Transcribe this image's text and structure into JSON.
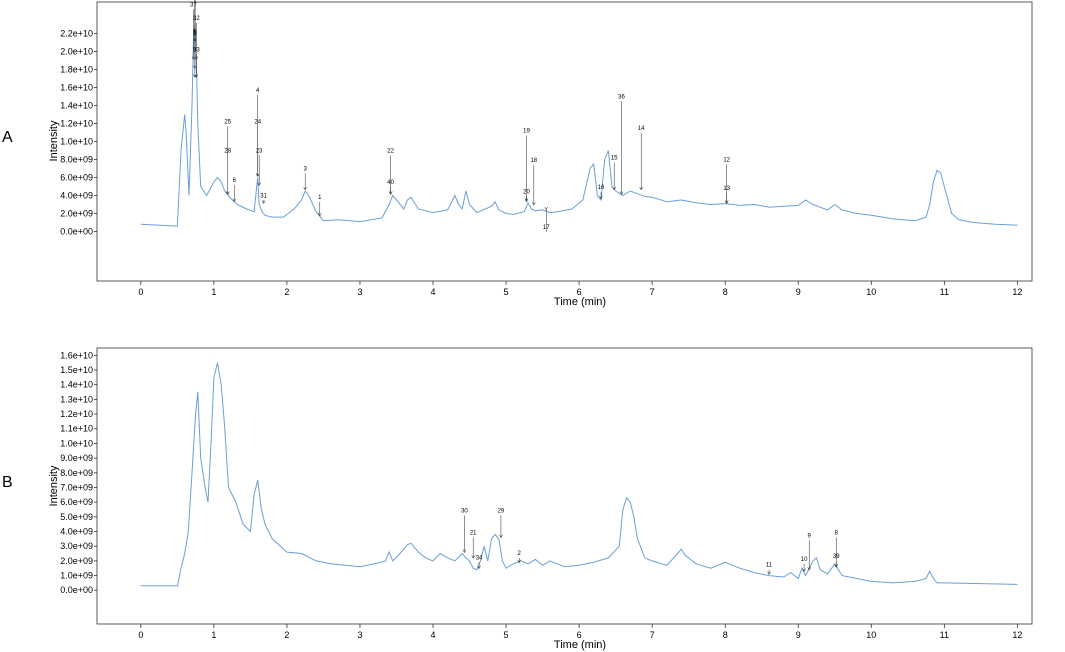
{
  "chart_data": [
    {
      "type": "line",
      "panel_label": "A",
      "xlabel": "Time (min)",
      "ylabel": "Intensity",
      "xlim": [
        -0.6,
        12.2
      ],
      "ylim": [
        -5500000000.0,
        25500000000.0
      ],
      "x_ticks": [
        0,
        1,
        2,
        3,
        4,
        5,
        6,
        7,
        8,
        9,
        10,
        11,
        12
      ],
      "y_ticks": [
        0,
        2000000000.0,
        4000000000.0,
        6000000000.0,
        8000000000.0,
        10000000000.0,
        12000000000.0,
        14000000000.0,
        16000000000.0,
        18000000000.0,
        20000000000.0,
        22000000000.0
      ],
      "y_tick_labels": [
        "0.0e+00",
        "2.0e+09",
        "4.0e+09",
        "6.0e+09",
        "8.0e+09",
        "1.0e+10",
        "1.2e+10",
        "1.4e+10",
        "1.6e+10",
        "1.8e+10",
        "2.0e+10",
        "2.2e+10"
      ],
      "line_color": "#6a9fd8",
      "grid": false,
      "series": [
        {
          "x": [
            0,
            0.5,
            0.55,
            0.6,
            0.62,
            0.66,
            0.7,
            0.72,
            0.74,
            0.76,
            0.78,
            0.82,
            0.9,
            1.0,
            1.05,
            1.1,
            1.15,
            1.25,
            1.32,
            1.45,
            1.55,
            1.6,
            1.62,
            1.66,
            1.7,
            1.8,
            1.95,
            2.1,
            2.2,
            2.25,
            2.3,
            2.4,
            2.5,
            2.7,
            3.0,
            3.3,
            3.4,
            3.45,
            3.5,
            3.6,
            3.65,
            3.7,
            3.8,
            4.0,
            4.2,
            4.3,
            4.35,
            4.4,
            4.45,
            4.5,
            4.6,
            4.8,
            4.85,
            4.9,
            5.0,
            5.1,
            5.25,
            5.3,
            5.35,
            5.4,
            5.5,
            5.6,
            5.7,
            5.9,
            6.05,
            6.15,
            6.2,
            6.25,
            6.3,
            6.35,
            6.4,
            6.45,
            6.5,
            6.6,
            6.7,
            6.8,
            6.9,
            7.0,
            7.2,
            7.4,
            7.6,
            7.8,
            8.0,
            8.2,
            8.4,
            8.6,
            8.8,
            9.0,
            9.1,
            9.2,
            9.3,
            9.4,
            9.5,
            9.6,
            9.8,
            10.0,
            10.3,
            10.6,
            10.75,
            10.8,
            10.85,
            10.9,
            10.95,
            11.0,
            11.05,
            11.1,
            11.2,
            11.4,
            11.7,
            12.0
          ],
          "y": [
            800000000.0,
            600000000.0,
            9000000000.0,
            13000000000.0,
            11000000000.0,
            4000000000.0,
            14000000000.0,
            21000000000.0,
            23000000000.0,
            19000000000.0,
            12000000000.0,
            5000000000.0,
            4000000000.0,
            5500000000.0,
            6000000000.0,
            5500000000.0,
            4500000000.0,
            3500000000.0,
            3000000000.0,
            2500000000.0,
            2200000000.0,
            6000000000.0,
            3000000000.0,
            2200000000.0,
            1800000000.0,
            1600000000.0,
            1600000000.0,
            2500000000.0,
            3500000000.0,
            4500000000.0,
            4000000000.0,
            2200000000.0,
            1200000000.0,
            1300000000.0,
            1100000000.0,
            1500000000.0,
            3000000000.0,
            4000000000.0,
            3500000000.0,
            2500000000.0,
            3500000000.0,
            3800000000.0,
            2500000000.0,
            2100000000.0,
            2400000000.0,
            4000000000.0,
            3000000000.0,
            2500000000.0,
            4500000000.0,
            3000000000.0,
            2100000000.0,
            2800000000.0,
            3300000000.0,
            2400000000.0,
            2000000000.0,
            1900000000.0,
            2200000000.0,
            3200000000.0,
            2500000000.0,
            2300000000.0,
            2400000000.0,
            2100000000.0,
            2200000000.0,
            2500000000.0,
            3500000000.0,
            7000000000.0,
            7500000000.0,
            4000000000.0,
            3500000000.0,
            8000000000.0,
            9000000000.0,
            5000000000.0,
            4500000000.0,
            4000000000.0,
            4500000000.0,
            4200000000.0,
            3900000000.0,
            3800000000.0,
            3300000000.0,
            3500000000.0,
            3200000000.0,
            3000000000.0,
            3100000000.0,
            2900000000.0,
            3000000000.0,
            2700000000.0,
            2800000000.0,
            2900000000.0,
            3500000000.0,
            3000000000.0,
            2700000000.0,
            2400000000.0,
            3000000000.0,
            2400000000.0,
            2000000000.0,
            1800000000.0,
            1400000000.0,
            1200000000.0,
            1600000000.0,
            3000000000.0,
            5500000000.0,
            6800000000.0,
            6500000000.0,
            5000000000.0,
            3500000000.0,
            2000000000.0,
            1300000000.0,
            1000000000.0,
            800000000.0,
            700000000.0
          ]
        }
      ],
      "annotations": [
        {
          "label": "26",
          "x": 0.74,
          "y": 21000000000.0,
          "text_y": 32000000000.0
        },
        {
          "label": "27",
          "x": 0.74,
          "y": 21000000000.0,
          "text_y": 30500000000.0
        },
        {
          "label": "38",
          "x": 0.74,
          "y": 21000000000.0,
          "text_y": 29000000000.0
        },
        {
          "label": "35",
          "x": 0.74,
          "y": 21000000000.0,
          "text_y": 27500000000.0
        },
        {
          "label": "7",
          "x": 0.74,
          "y": 20000000000.0,
          "text_y": 26000000000.0
        },
        {
          "label": "37",
          "x": 0.72,
          "y": 19000000000.0,
          "text_y": 25000000000.0
        },
        {
          "label": "32",
          "x": 0.76,
          "y": 19000000000.0,
          "text_y": 23500000000.0
        },
        {
          "label": "5",
          "x": 0.74,
          "y": 18000000000.0,
          "text_y": 22000000000.0
        },
        {
          "label": "9",
          "x": 0.74,
          "y": 17000000000.0,
          "text_y": 21800000000.0
        },
        {
          "label": "33",
          "x": 0.76,
          "y": 17000000000.0,
          "text_y": 20000000000.0
        },
        {
          "label": "25",
          "x": 1.19,
          "y": 4000000000.0,
          "text_y": 12000000000.0
        },
        {
          "label": "28",
          "x": 1.19,
          "y": 4000000000.0,
          "text_y": 8800000000.0
        },
        {
          "label": "6",
          "x": 1.28,
          "y": 3200000000.0,
          "text_y": 5500000000.0
        },
        {
          "label": "4",
          "x": 1.6,
          "y": 6000000000.0,
          "text_y": 15500000000.0
        },
        {
          "label": "24",
          "x": 1.6,
          "y": 6000000000.0,
          "text_y": 12000000000.0
        },
        {
          "label": "23",
          "x": 1.62,
          "y": 5000000000.0,
          "text_y": 8800000000.0
        },
        {
          "label": "31",
          "x": 1.68,
          "y": 3000000000.0,
          "text_y": 3800000000.0
        },
        {
          "label": "3",
          "x": 2.25,
          "y": 4500000000.0,
          "text_y": 6800000000.0
        },
        {
          "label": "1",
          "x": 2.45,
          "y": 1600000000.0,
          "text_y": 3600000000.0
        },
        {
          "label": "22",
          "x": 3.42,
          "y": 4000000000.0,
          "text_y": 8800000000.0
        },
        {
          "label": "40",
          "x": 3.42,
          "y": 4000000000.0,
          "text_y": 5300000000.0
        },
        {
          "label": "19",
          "x": 5.28,
          "y": 3200000000.0,
          "text_y": 11000000000.0
        },
        {
          "label": "20",
          "x": 5.28,
          "y": 3200000000.0,
          "text_y": 4200000000.0
        },
        {
          "label": "18",
          "x": 5.38,
          "y": 2800000000.0,
          "text_y": 7700000000.0
        },
        {
          "label": "17",
          "x": 5.55,
          "y": 2300000000.0,
          "text_y": 300000000.0
        },
        {
          "label": "16",
          "x": 6.3,
          "y": 3500000000.0,
          "text_y": 4700000000.0
        },
        {
          "label": "15",
          "x": 6.48,
          "y": 4500000000.0,
          "text_y": 8000000000.0
        },
        {
          "label": "36",
          "x": 6.58,
          "y": 4000000000.0,
          "text_y": 14800000000.0
        },
        {
          "label": "14",
          "x": 6.85,
          "y": 4500000000.0,
          "text_y": 11300000000.0
        },
        {
          "label": "12",
          "x": 8.02,
          "y": 3000000000.0,
          "text_y": 7800000000.0
        },
        {
          "label": "13",
          "x": 8.02,
          "y": 3000000000.0,
          "text_y": 4600000000.0
        }
      ]
    },
    {
      "type": "line",
      "panel_label": "B",
      "xlabel": "Time (min)",
      "ylabel": "Intensity",
      "xlim": [
        -0.6,
        12.2
      ],
      "ylim": [
        -2300000000.0,
        16500000000.0
      ],
      "x_ticks": [
        0,
        1,
        2,
        3,
        4,
        5,
        6,
        7,
        8,
        9,
        10,
        11,
        12
      ],
      "y_ticks": [
        0,
        1000000000.0,
        2000000000.0,
        3000000000.0,
        4000000000.0,
        5000000000.0,
        6000000000.0,
        7000000000.0,
        8000000000.0,
        9000000000.0,
        10000000000.0,
        11000000000.0,
        12000000000.0,
        13000000000.0,
        14000000000.0,
        15000000000.0,
        16000000000.0
      ],
      "y_tick_labels": [
        "0.0e+00",
        "1.0e+09",
        "2.0e+09",
        "3.0e+09",
        "4.0e+09",
        "5.0e+09",
        "6.0e+09",
        "7.0e+09",
        "8.0e+09",
        "9.0e+09",
        "1.0e+10",
        "1.1e+10",
        "1.2e+10",
        "1.3e+10",
        "1.4e+10",
        "1.5e+10",
        "1.6e+10"
      ],
      "line_color": "#6a9fd8",
      "grid": false,
      "series": [
        {
          "x": [
            0,
            0.5,
            0.55,
            0.6,
            0.65,
            0.7,
            0.75,
            0.78,
            0.82,
            0.88,
            0.92,
            0.96,
            1.0,
            1.05,
            1.1,
            1.15,
            1.2,
            1.3,
            1.4,
            1.5,
            1.55,
            1.6,
            1.65,
            1.7,
            1.8,
            2.0,
            2.2,
            2.4,
            2.6,
            2.8,
            3.0,
            3.2,
            3.35,
            3.4,
            3.45,
            3.55,
            3.65,
            3.7,
            3.8,
            3.9,
            4.0,
            4.1,
            4.2,
            4.3,
            4.4,
            4.45,
            4.5,
            4.55,
            4.6,
            4.65,
            4.7,
            4.75,
            4.8,
            4.85,
            4.9,
            4.95,
            5.0,
            5.1,
            5.2,
            5.3,
            5.4,
            5.5,
            5.6,
            5.7,
            5.8,
            6.0,
            6.2,
            6.4,
            6.55,
            6.6,
            6.65,
            6.7,
            6.75,
            6.8,
            6.9,
            7.0,
            7.2,
            7.35,
            7.4,
            7.45,
            7.6,
            7.8,
            8.0,
            8.2,
            8.4,
            8.6,
            8.8,
            8.9,
            9.0,
            9.05,
            9.1,
            9.2,
            9.25,
            9.3,
            9.4,
            9.5,
            9.6,
            9.8,
            10.0,
            10.3,
            10.6,
            10.75,
            10.8,
            10.85,
            10.9,
            11.0,
            11.5,
            12.0
          ],
          "y": [
            300000000.0,
            300000000.0,
            1500000000.0,
            2500000000.0,
            4000000000.0,
            8000000000.0,
            12000000000.0,
            13500000000.0,
            9000000000.0,
            7000000000.0,
            6000000000.0,
            10000000000.0,
            14500000000.0,
            15500000000.0,
            14000000000.0,
            11000000000.0,
            7000000000.0,
            6000000000.0,
            4500000000.0,
            4000000000.0,
            6500000000.0,
            7500000000.0,
            5500000000.0,
            4500000000.0,
            3500000000.0,
            2600000000.0,
            2500000000.0,
            2000000000.0,
            1800000000.0,
            1700000000.0,
            1600000000.0,
            1800000000.0,
            2000000000.0,
            2600000000.0,
            2000000000.0,
            2500000000.0,
            3100000000.0,
            3200000000.0,
            2600000000.0,
            2200000000.0,
            2000000000.0,
            2500000000.0,
            2200000000.0,
            2000000000.0,
            2500000000.0,
            2200000000.0,
            2000000000.0,
            1500000000.0,
            1400000000.0,
            2000000000.0,
            3000000000.0,
            2000000000.0,
            3500000000.0,
            3800000000.0,
            3500000000.0,
            2000000000.0,
            1500000000.0,
            1800000000.0,
            2000000000.0,
            1800000000.0,
            2100000000.0,
            1700000000.0,
            2000000000.0,
            1800000000.0,
            1600000000.0,
            1700000000.0,
            1900000000.0,
            2200000000.0,
            3000000000.0,
            5500000000.0,
            6300000000.0,
            6000000000.0,
            5000000000.0,
            3500000000.0,
            2200000000.0,
            2000000000.0,
            1700000000.0,
            2500000000.0,
            2800000000.0,
            2400000000.0,
            1800000000.0,
            1500000000.0,
            1900000000.0,
            1500000000.0,
            1200000000.0,
            1000000000.0,
            900000000.0,
            1200000000.0,
            800000000.0,
            1500000000.0,
            1000000000.0,
            2000000000.0,
            2200000000.0,
            1400000000.0,
            1100000000.0,
            1800000000.0,
            1000000000.0,
            800000000.0,
            600000000.0,
            500000000.0,
            600000000.0,
            800000000.0,
            1300000000.0,
            800000000.0,
            500000000.0,
            500000000.0,
            450000000.0,
            400000000.0
          ]
        }
      ],
      "annotations": [
        {
          "label": "30",
          "x": 4.43,
          "y": 2500000000.0,
          "text_y": 5300000000.0
        },
        {
          "label": "21",
          "x": 4.55,
          "y": 2100000000.0,
          "text_y": 3800000000.0
        },
        {
          "label": "34",
          "x": 4.63,
          "y": 1400000000.0,
          "text_y": 2100000000.0
        },
        {
          "label": "29",
          "x": 4.93,
          "y": 3500000000.0,
          "text_y": 5300000000.0
        },
        {
          "label": "2",
          "x": 5.18,
          "y": 1800000000.0,
          "text_y": 2400000000.0
        },
        {
          "label": "11",
          "x": 8.6,
          "y": 1000000000.0,
          "text_y": 1600000000.0
        },
        {
          "label": "9",
          "x": 9.15,
          "y": 1300000000.0,
          "text_y": 3600000000.0
        },
        {
          "label": "10",
          "x": 9.08,
          "y": 1200000000.0,
          "text_y": 2000000000.0
        },
        {
          "label": "8",
          "x": 9.52,
          "y": 1500000000.0,
          "text_y": 3800000000.0
        },
        {
          "label": "39",
          "x": 9.52,
          "y": 1500000000.0,
          "text_y": 2200000000.0
        }
      ]
    }
  ]
}
